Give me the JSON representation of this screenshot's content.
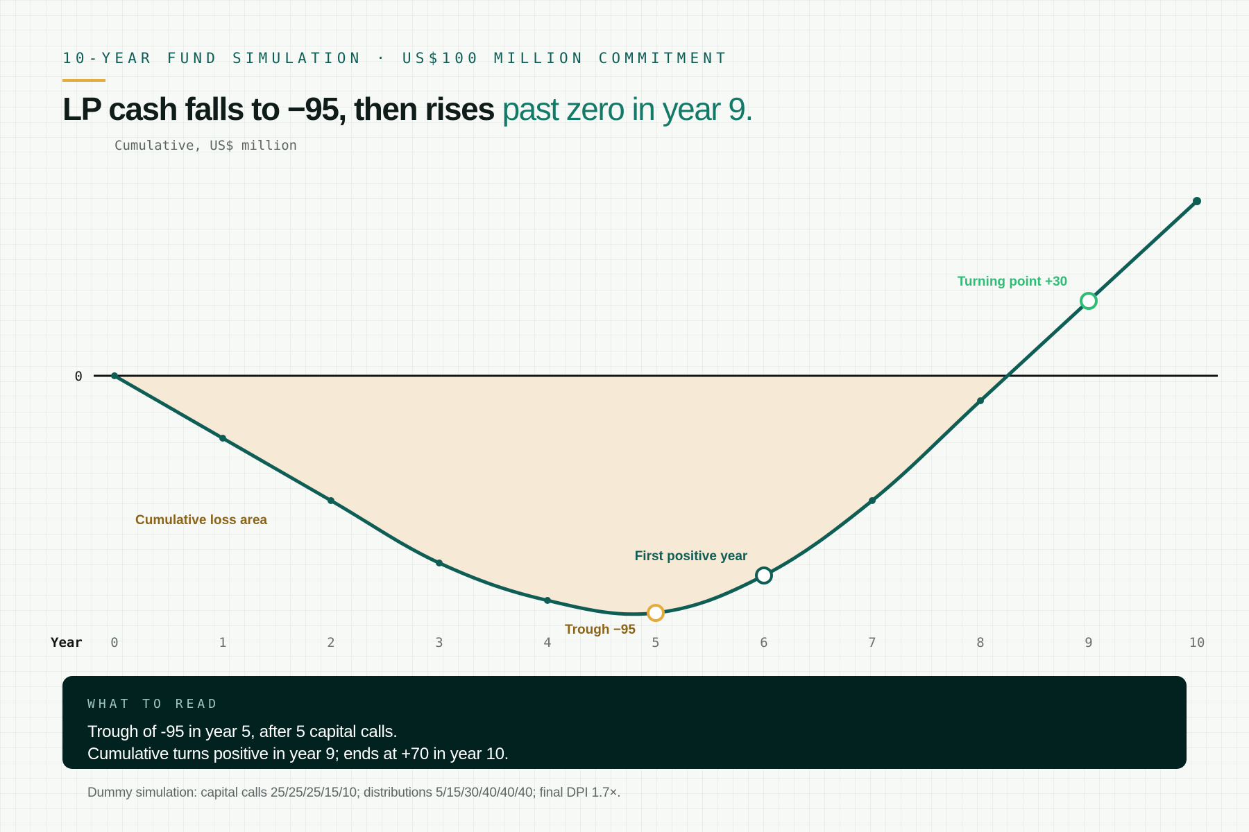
{
  "header": {
    "kicker": "10-YEAR FUND SIMULATION · US$100 MILLION COMMITMENT",
    "headline_main": "LP cash falls to −95, then rises",
    "headline_accent": "past zero in year 9.",
    "unit_label": "Cumulative, US$ million"
  },
  "chart_data": {
    "type": "area",
    "x": [
      0,
      1,
      2,
      3,
      4,
      5,
      6,
      7,
      8,
      9,
      10
    ],
    "series": [
      {
        "values": [
          0,
          -25,
          -50,
          -75,
          -90,
          -95,
          -80,
          -50,
          -10,
          30,
          70
        ]
      }
    ],
    "xlabel": "Year",
    "xtick_labels": [
      "0",
      "1",
      "2",
      "3",
      "4",
      "5",
      "6",
      "7",
      "8",
      "9",
      "10"
    ],
    "ytick_labels": [
      "0"
    ],
    "xlim": [
      0,
      10
    ],
    "ylim": [
      -105,
      80
    ],
    "grid": true,
    "annotations": {
      "area_label": "Cumulative loss area",
      "trough_label": "Trough −95",
      "first_positive_label": "First positive year",
      "turning_point_label": "Turning point +30"
    },
    "markers": {
      "trough_x": 5,
      "first_positive_x": 6,
      "turning_point_x": 9
    }
  },
  "callout": {
    "title": "WHAT TO READ",
    "line1": "Trough of -95 in year 5, after 5 capital calls.",
    "line2": "Cumulative turns positive in year 9; ends at +70 in year 10."
  },
  "footnote": "Dummy simulation: capital calls 25/25/25/15/10; distributions 5/15/30/40/40/40; final DPI 1.7×.",
  "colors": {
    "line": "#0f5e56",
    "area": "#f6ead7",
    "trough": "#e3ac3c",
    "trough_text": "#8a6418",
    "turning": "#2fbd76",
    "axis": "#141414",
    "callout_bg": "#02221f"
  }
}
